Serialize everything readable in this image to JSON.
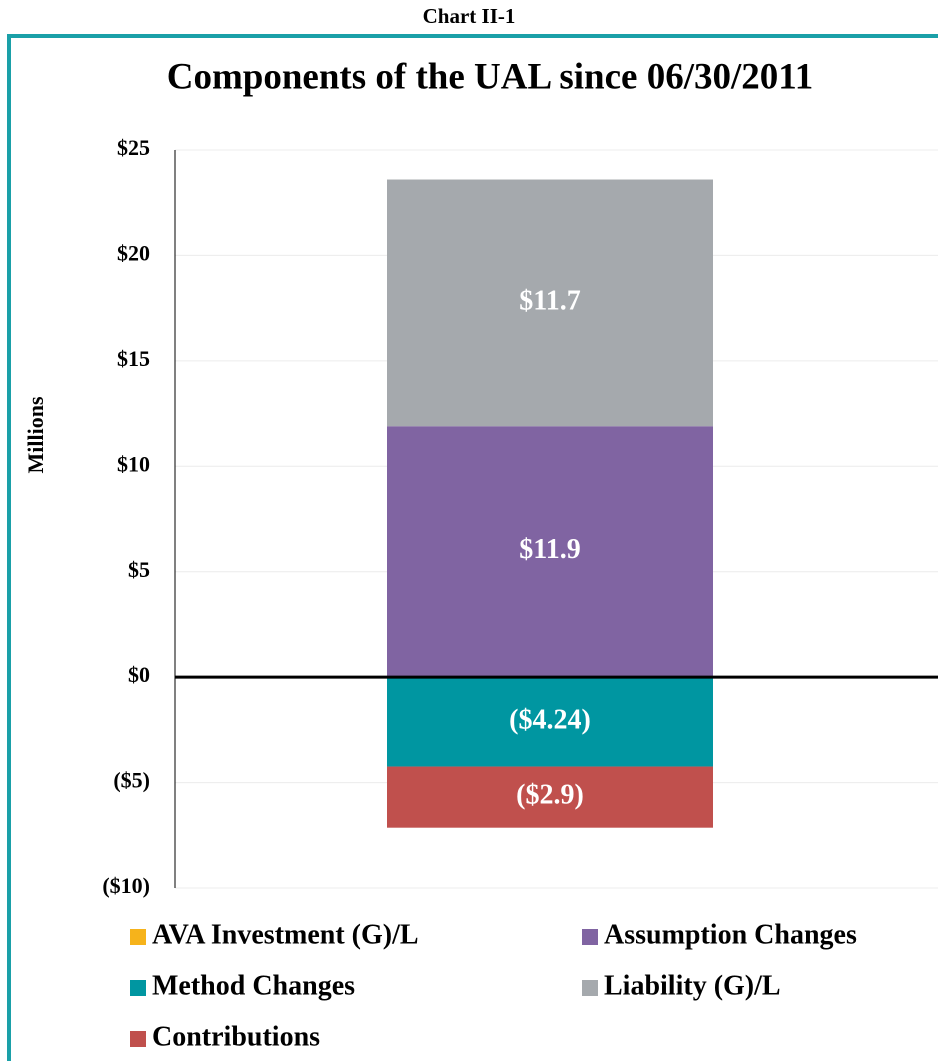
{
  "chart_data": {
    "type": "stacked_bar",
    "header": "Chart II-1",
    "title": "Components of the UAL since 06/30/2011",
    "ylabel": "Millions",
    "categories": [
      null
    ],
    "series": [
      {
        "name": "AVA Investment (G)/L",
        "color": "#f6b31b",
        "values": [
          0
        ]
      },
      {
        "name": "Assumption Changes",
        "color": "#8064a2",
        "values": [
          11.9
        ],
        "value_labels": [
          "$11.9"
        ]
      },
      {
        "name": "Method Changes",
        "color": "#0096a1",
        "values": [
          -4.24
        ],
        "value_labels": [
          "($4.24)"
        ]
      },
      {
        "name": "Liability (G)/L",
        "color": "#a5a9ad",
        "values": [
          11.7
        ],
        "value_labels": [
          "$11.7"
        ]
      },
      {
        "name": "Contributions",
        "color": "#c0504d",
        "values": [
          -2.9
        ],
        "value_labels": [
          "($2.9)"
        ]
      }
    ],
    "ylim": [
      -10,
      25
    ],
    "yticks": [
      {
        "value": -10,
        "label": "($10)"
      },
      {
        "value": -5,
        "label": "($5)"
      },
      {
        "value": 0,
        "label": "$0"
      },
      {
        "value": 5,
        "label": "$5"
      },
      {
        "value": 10,
        "label": "$10"
      },
      {
        "value": 15,
        "label": "$15"
      },
      {
        "value": 20,
        "label": "$20"
      },
      {
        "value": 25,
        "label": "$25"
      }
    ],
    "grid": true
  }
}
